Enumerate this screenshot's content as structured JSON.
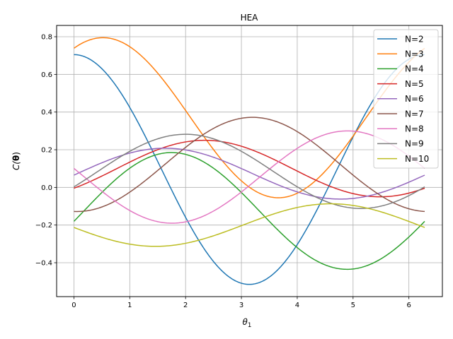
{
  "chart_data": {
    "type": "line",
    "title": "HEA",
    "xlabel_main": "θ",
    "xlabel_sub": "1",
    "ylabel_main": "C(",
    "ylabel_bold": "θ",
    "ylabel_close": ")",
    "xlim": [
      -0.31,
      6.6
    ],
    "ylim": [
      -0.58,
      0.86
    ],
    "xticks": [
      0,
      1,
      2,
      3,
      4,
      5,
      6
    ],
    "xtick_labels": [
      "0",
      "1",
      "2",
      "3",
      "4",
      "5",
      "6"
    ],
    "yticks": [
      -0.4,
      -0.2,
      0.0,
      0.2,
      0.4,
      0.6,
      0.8
    ],
    "ytick_labels": [
      "−0.4",
      "−0.2",
      "0.0",
      "0.2",
      "0.4",
      "0.6",
      "0.8"
    ],
    "grid": true,
    "legend_position": "top-right",
    "series": [
      {
        "name": "N=2",
        "color": "#1f77b4",
        "offset": 0.095,
        "amp": 0.61,
        "phase": 0.0,
        "freq": 1
      },
      {
        "name": "N=3",
        "color": "#ff7f0e",
        "offset": 0.37,
        "amp": 0.425,
        "phase": 0.52,
        "freq": 1
      },
      {
        "name": "N=4",
        "color": "#2ca02c",
        "offset": -0.125,
        "amp": 0.31,
        "phase": 1.75,
        "freq": 1
      },
      {
        "name": "N=5",
        "color": "#d62728",
        "offset": 0.1,
        "amp": 0.15,
        "phase": 2.34,
        "freq": 1
      },
      {
        "name": "N=6",
        "color": "#9467bd",
        "offset": 0.073,
        "amp": 0.135,
        "phase": 1.63,
        "freq": 1
      },
      {
        "name": "N=7",
        "color": "#8c564b",
        "offset": 0.122,
        "amp": 0.25,
        "phase": 3.2,
        "freq": 1
      },
      {
        "name": "N=8",
        "color": "#e377c2",
        "offset": 0.055,
        "amp": 0.245,
        "phase": 4.9,
        "freq": 1
      },
      {
        "name": "N=9",
        "color": "#7f7f7f",
        "offset": 0.085,
        "amp": 0.197,
        "phase": 2.0,
        "freq": 1
      },
      {
        "name": "N=10",
        "color": "#bcbd22",
        "offset": -0.2,
        "amp": 0.113,
        "phase": 4.6,
        "freq": 1
      }
    ]
  }
}
